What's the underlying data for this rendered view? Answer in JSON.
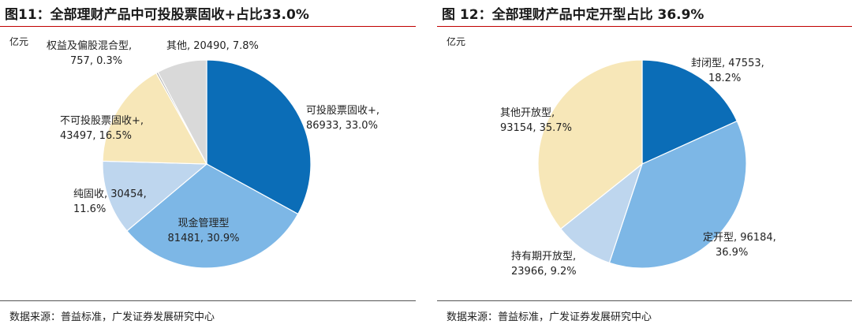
{
  "chart_data": [
    {
      "type": "pie",
      "title": "图11：全部理财产品中可投股票固收+占比33.0%",
      "unit": "亿元",
      "source": "数据来源：普益标准，广发证券发展研究中心",
      "slices": [
        {
          "name": "可投股票固收+",
          "value": 86933,
          "pct": "33.0%",
          "color": "#0b6db7"
        },
        {
          "name": "现金管理型",
          "value": 81481,
          "pct": "30.9%",
          "color": "#7db7e6"
        },
        {
          "name": "纯固收",
          "value": 30454,
          "pct": "11.6%",
          "color": "#bed6ee"
        },
        {
          "name": "不可投股票固收+",
          "value": 43497,
          "pct": "16.5%",
          "color": "#f7e7b8"
        },
        {
          "name": "权益及偏股混合型",
          "value": 757,
          "pct": "0.3%",
          "color": "#a8a8a8"
        },
        {
          "name": "其他",
          "value": 20490,
          "pct": "7.8%",
          "color": "#d9d9d9"
        }
      ]
    },
    {
      "type": "pie",
      "title": "图 12：全部理财产品中定开型占比 36.9%",
      "unit": "亿元",
      "source": "数据来源：普益标准，广发证券发展研究中心",
      "slices": [
        {
          "name": "封闭型",
          "value": 47553,
          "pct": "18.2%",
          "color": "#0b6db7"
        },
        {
          "name": "定开型",
          "value": 96184,
          "pct": "36.9%",
          "color": "#7db7e6"
        },
        {
          "name": "持有期开放型",
          "value": 23966,
          "pct": "9.2%",
          "color": "#bed6ee"
        },
        {
          "name": "其他开放型",
          "value": 93154,
          "pct": "35.7%",
          "color": "#f7e7b8"
        }
      ]
    }
  ]
}
